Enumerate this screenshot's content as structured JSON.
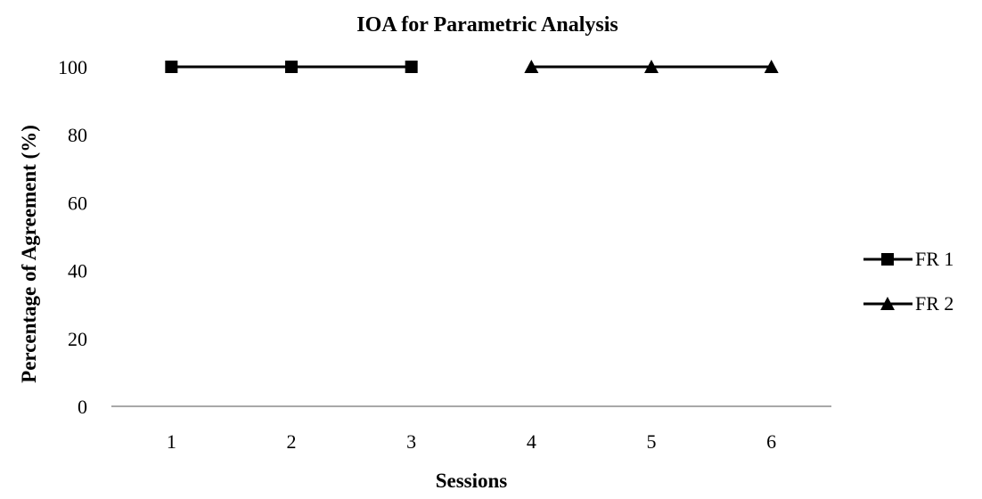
{
  "chart_data": {
    "type": "line",
    "title": "IOA for Parametric Analysis",
    "xlabel": "Sessions",
    "ylabel": "Percentage of Agreement (%)",
    "categories": [
      "1",
      "2",
      "3",
      "4",
      "5",
      "6"
    ],
    "ylim": [
      0,
      100
    ],
    "yticks": [
      0,
      20,
      40,
      60,
      80,
      100
    ],
    "grid": false,
    "legend_position": "right",
    "series": [
      {
        "name": "FR 1",
        "marker": "square",
        "color": "#000000",
        "x": [
          "1",
          "2",
          "3"
        ],
        "values": [
          100,
          100,
          100
        ]
      },
      {
        "name": "FR 2",
        "marker": "triangle",
        "color": "#000000",
        "x": [
          "4",
          "5",
          "6"
        ],
        "values": [
          100,
          100,
          100
        ]
      }
    ]
  }
}
